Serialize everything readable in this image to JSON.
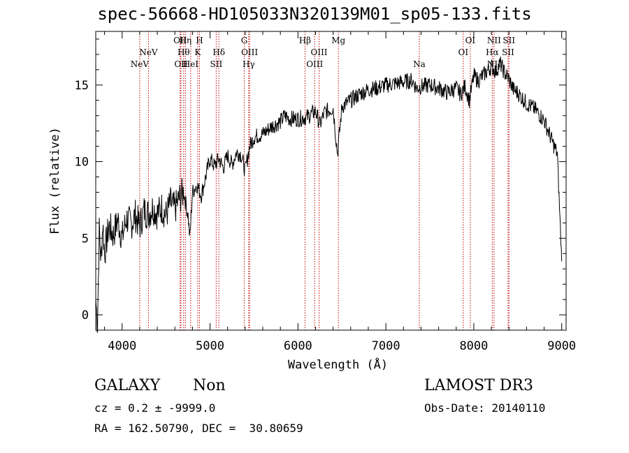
{
  "chart_data": {
    "type": "line",
    "title": "spec-56668-HD105033N320139M01_sp05-133.fits",
    "xlabel": "Wavelength (Å)",
    "ylabel": "Flux (relative)",
    "xlim": [
      3700,
      9050
    ],
    "ylim": [
      -1,
      18.5
    ],
    "xticks": [
      4000,
      5000,
      6000,
      7000,
      8000,
      9000
    ],
    "yticks": [
      0,
      5,
      10,
      15
    ],
    "series": [
      {
        "name": "flux",
        "x": [
          3700,
          3720,
          3740,
          3760,
          3780,
          3800,
          3850,
          3900,
          3950,
          4000,
          4050,
          4100,
          4150,
          4200,
          4250,
          4300,
          4350,
          4400,
          4450,
          4500,
          4550,
          4600,
          4650,
          4700,
          4750,
          4770,
          4800,
          4850,
          4900,
          4950,
          5000,
          5050,
          5100,
          5150,
          5200,
          5250,
          5300,
          5350,
          5400,
          5450,
          5500,
          5600,
          5700,
          5800,
          5850,
          5900,
          6000,
          6100,
          6200,
          6250,
          6300,
          6400,
          6450,
          6500,
          6600,
          6700,
          6800,
          6900,
          7000,
          7100,
          7200,
          7300,
          7350,
          7400,
          7500,
          7600,
          7700,
          7800,
          7850,
          7900,
          7950,
          8000,
          8050,
          8100,
          8150,
          8200,
          8250,
          8300,
          8350,
          8400,
          8450,
          8500,
          8600,
          8700,
          8800,
          8900,
          8950,
          9000
        ],
        "values": [
          1.0,
          -0.6,
          5.5,
          3.5,
          6.0,
          4.0,
          5.8,
          5.2,
          6.2,
          5.0,
          6.3,
          5.9,
          6.5,
          5.8,
          6.8,
          6.6,
          7.0,
          6.6,
          7.0,
          6.5,
          7.3,
          6.9,
          7.6,
          8.0,
          6.5,
          5.0,
          8.0,
          8.5,
          7.8,
          9.0,
          10.2,
          9.7,
          10.2,
          9.6,
          10.4,
          9.8,
          10.6,
          10.5,
          9.4,
          11.0,
          11.6,
          11.8,
          12.3,
          12.6,
          13.0,
          12.8,
          12.8,
          12.9,
          13.3,
          12.4,
          13.2,
          13.5,
          10.5,
          13.6,
          14.0,
          14.4,
          14.7,
          14.8,
          15.0,
          15.1,
          15.2,
          15.3,
          14.8,
          14.9,
          15.0,
          14.8,
          14.5,
          14.8,
          14.4,
          14.9,
          14.0,
          15.6,
          15.3,
          15.6,
          15.9,
          16.2,
          15.9,
          16.4,
          15.8,
          15.4,
          14.7,
          14.5,
          13.8,
          13.4,
          12.7,
          11.2,
          10.5,
          3.5
        ]
      }
    ],
    "annotations": [
      {
        "label": "NeV",
        "wavelength": 4200,
        "row": 3
      },
      {
        "label": "NeV",
        "wavelength": 4300,
        "row": 2
      },
      {
        "label": "OII",
        "wavelength": 4660,
        "row": 1
      },
      {
        "label": "OII",
        "wavelength": 4670,
        "row": 3
      },
      {
        "label": "Hη",
        "wavelength": 4720,
        "row": 1
      },
      {
        "label": "Hθ",
        "wavelength": 4700,
        "row": 2
      },
      {
        "label": "HeI",
        "wavelength": 4780,
        "row": 3
      },
      {
        "label": "H",
        "wavelength": 4880,
        "row": 1
      },
      {
        "label": "K",
        "wavelength": 4860,
        "row": 2
      },
      {
        "label": "Hδ",
        "wavelength": 5100,
        "row": 2
      },
      {
        "label": "SII",
        "wavelength": 5070,
        "row": 3
      },
      {
        "label": "G",
        "wavelength": 5390,
        "row": 1
      },
      {
        "label": "OIII",
        "wavelength": 5450,
        "row": 2
      },
      {
        "label": "Hγ",
        "wavelength": 5440,
        "row": 3
      },
      {
        "label": "Hβ",
        "wavelength": 6080,
        "row": 1
      },
      {
        "label": "OIII",
        "wavelength": 6240,
        "row": 2
      },
      {
        "label": "OIII",
        "wavelength": 6190,
        "row": 3
      },
      {
        "label": "Mg",
        "wavelength": 6460,
        "row": 1
      },
      {
        "label": "Na",
        "wavelength": 7380,
        "row": 3
      },
      {
        "label": "OI",
        "wavelength": 7960,
        "row": 1
      },
      {
        "label": "OI",
        "wavelength": 7880,
        "row": 2
      },
      {
        "label": "NII",
        "wavelength": 8230,
        "row": 1
      },
      {
        "label": "Hα",
        "wavelength": 8210,
        "row": 2
      },
      {
        "label": "NII",
        "wavelength": 8230,
        "row": 3
      },
      {
        "label": "SII",
        "wavelength": 8400,
        "row": 1
      },
      {
        "label": "SII",
        "wavelength": 8390,
        "row": 2
      }
    ]
  },
  "info": {
    "class": "GALAXY",
    "subclass": "Non",
    "cz": "cz = 0.2 ± -9999.0",
    "radec": "RA = 162.50790, DEC =  30.80659",
    "survey": "LAMOST DR3",
    "obsdate": "Obs-Date: 20140110"
  },
  "colors": {
    "line": "#000000",
    "marker": "#c00000"
  }
}
